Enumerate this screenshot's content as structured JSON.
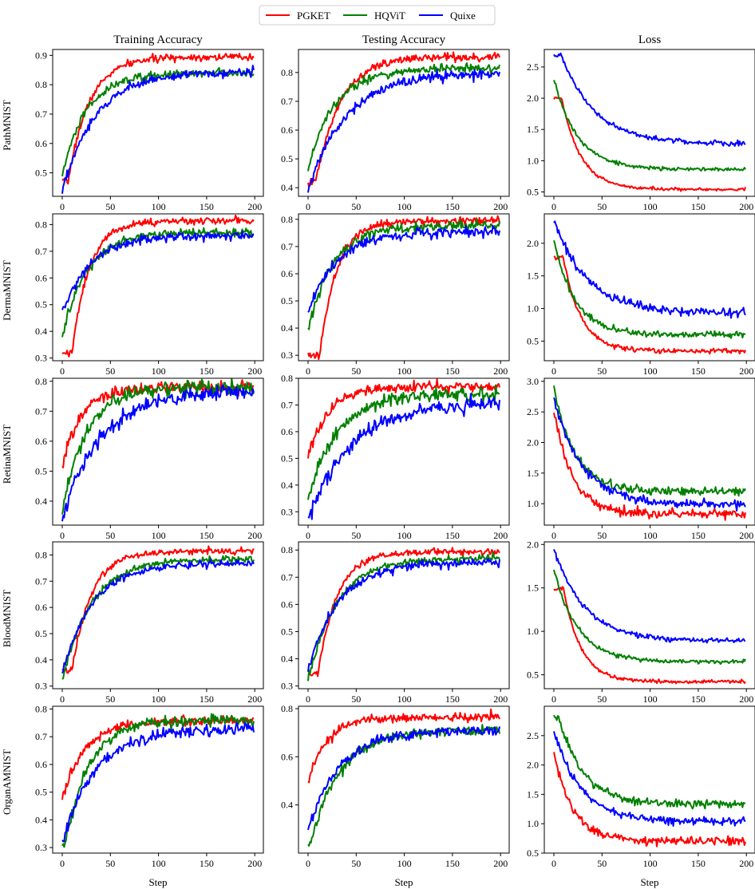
{
  "legend": {
    "entries": [
      {
        "name": "PGKET",
        "color": "#ff0000"
      },
      {
        "name": "HQViT",
        "color": "#008000"
      },
      {
        "name": "Quixe",
        "color": "#0000ff"
      }
    ]
  },
  "column_titles": [
    "Training Accuracy",
    "Testing Accuracy",
    "Loss"
  ],
  "row_labels": [
    "PathMNIST",
    "DermaMNIST",
    "RetinaMNIST",
    "BloodMNIST",
    "OrganAMNIST"
  ],
  "xlabel": "Step",
  "chart_data": {
    "type": "line",
    "x_range": [
      0,
      199
    ],
    "x_ticks": [
      0,
      50,
      100,
      150,
      200
    ],
    "series_names": [
      "PGKET",
      "HQViT",
      "Quixe"
    ],
    "series_colors": [
      "#ff0000",
      "#008000",
      "#0000ff"
    ],
    "panels": [
      {
        "row": "PathMNIST",
        "column": "Training Accuracy",
        "ylim": [
          0.42,
          0.92
        ],
        "yticks": [
          0.5,
          0.6,
          0.7,
          0.8,
          0.9
        ],
        "yticklabels": [
          "0.5",
          "0.6",
          "0.7",
          "0.8",
          "0.9"
        ],
        "series": [
          {
            "name": "PGKET",
            "initial": 0.47,
            "final": 0.895,
            "rise_steps": 22,
            "noise": 0.006,
            "delay": 6
          },
          {
            "name": "HQViT",
            "initial": 0.49,
            "final": 0.84,
            "rise_steps": 25,
            "noise": 0.007,
            "delay": 0
          },
          {
            "name": "Quixe",
            "initial": 0.44,
            "final": 0.845,
            "rise_steps": 35,
            "noise": 0.007,
            "delay": 0
          }
        ]
      },
      {
        "row": "PathMNIST",
        "column": "Testing Accuracy",
        "ylim": [
          0.37,
          0.88
        ],
        "yticks": [
          0.4,
          0.5,
          0.6,
          0.7,
          0.8
        ],
        "yticklabels": [
          "0.4",
          "0.5",
          "0.6",
          "0.7",
          "0.8"
        ],
        "series": [
          {
            "name": "PGKET",
            "initial": 0.42,
            "final": 0.855,
            "rise_steps": 25,
            "noise": 0.007,
            "delay": 8
          },
          {
            "name": "HQViT",
            "initial": 0.47,
            "final": 0.815,
            "rise_steps": 28,
            "noise": 0.008,
            "delay": 0
          },
          {
            "name": "Quixe",
            "initial": 0.39,
            "final": 0.8,
            "rise_steps": 40,
            "noise": 0.009,
            "delay": 0
          }
        ]
      },
      {
        "row": "PathMNIST",
        "column": "Loss",
        "ylim": [
          0.43,
          2.78
        ],
        "yticks": [
          0.5,
          1.0,
          1.5,
          2.0,
          2.5
        ],
        "yticklabels": [
          "0.5",
          "1.0",
          "1.5",
          "2.0",
          "2.5"
        ],
        "series": [
          {
            "name": "PGKET",
            "initial": 2.0,
            "final": 0.54,
            "rise_steps": 20,
            "noise": 0.012,
            "delay": 8
          },
          {
            "name": "HQViT",
            "initial": 2.3,
            "final": 0.86,
            "rise_steps": 25,
            "noise": 0.015,
            "delay": 0
          },
          {
            "name": "Quixe",
            "initial": 2.68,
            "final": 1.27,
            "rise_steps": 35,
            "noise": 0.02,
            "delay": 8
          }
        ]
      },
      {
        "row": "DermaMNIST",
        "column": "Training Accuracy",
        "ylim": [
          0.29,
          0.84
        ],
        "yticks": [
          0.3,
          0.4,
          0.5,
          0.6,
          0.7,
          0.8
        ],
        "yticklabels": [
          "0.3",
          "0.4",
          "0.5",
          "0.6",
          "0.7",
          "0.8"
        ],
        "series": [
          {
            "name": "PGKET",
            "initial": 0.32,
            "final": 0.815,
            "rise_steps": 18,
            "noise": 0.007,
            "delay": 10
          },
          {
            "name": "HQViT",
            "initial": 0.37,
            "final": 0.77,
            "rise_steps": 25,
            "noise": 0.008,
            "delay": 0
          },
          {
            "name": "Quixe",
            "initial": 0.47,
            "final": 0.76,
            "rise_steps": 30,
            "noise": 0.008,
            "delay": 0
          }
        ]
      },
      {
        "row": "DermaMNIST",
        "column": "Testing Accuracy",
        "ylim": [
          0.28,
          0.82
        ],
        "yticks": [
          0.3,
          0.4,
          0.5,
          0.6,
          0.7,
          0.8
        ],
        "yticklabels": [
          "0.3",
          "0.4",
          "0.5",
          "0.6",
          "0.7",
          "0.8"
        ],
        "series": [
          {
            "name": "PGKET",
            "initial": 0.3,
            "final": 0.795,
            "rise_steps": 18,
            "noise": 0.008,
            "delay": 12
          },
          {
            "name": "HQViT",
            "initial": 0.39,
            "final": 0.775,
            "rise_steps": 25,
            "noise": 0.009,
            "delay": 0
          },
          {
            "name": "Quixe",
            "initial": 0.46,
            "final": 0.755,
            "rise_steps": 30,
            "noise": 0.01,
            "delay": 0
          }
        ]
      },
      {
        "row": "DermaMNIST",
        "column": "Loss",
        "ylim": [
          0.2,
          2.45
        ],
        "yticks": [
          0.5,
          1.0,
          1.5,
          2.0
        ],
        "yticklabels": [
          "0.5",
          "1.0",
          "1.5",
          "2.0"
        ],
        "series": [
          {
            "name": "PGKET",
            "initial": 1.78,
            "final": 0.35,
            "rise_steps": 18,
            "noise": 0.02,
            "delay": 10
          },
          {
            "name": "HQViT",
            "initial": 2.05,
            "final": 0.6,
            "rise_steps": 22,
            "noise": 0.025,
            "delay": 0
          },
          {
            "name": "Quixe",
            "initial": 2.35,
            "final": 0.93,
            "rise_steps": 35,
            "noise": 0.03,
            "delay": 0
          }
        ]
      },
      {
        "row": "RetinaMNIST",
        "column": "Training Accuracy",
        "ylim": [
          0.32,
          0.81
        ],
        "yticks": [
          0.4,
          0.5,
          0.6,
          0.7,
          0.8
        ],
        "yticklabels": [
          "0.4",
          "0.5",
          "0.6",
          "0.7",
          "0.8"
        ],
        "series": [
          {
            "name": "PGKET",
            "initial": 0.52,
            "final": 0.78,
            "rise_steps": 20,
            "noise": 0.01,
            "delay": 0
          },
          {
            "name": "HQViT",
            "initial": 0.37,
            "final": 0.78,
            "rise_steps": 25,
            "noise": 0.012,
            "delay": 0
          },
          {
            "name": "Quixe",
            "initial": 0.34,
            "final": 0.77,
            "rise_steps": 40,
            "noise": 0.013,
            "delay": 0
          }
        ]
      },
      {
        "row": "RetinaMNIST",
        "column": "Testing Accuracy",
        "ylim": [
          0.25,
          0.8
        ],
        "yticks": [
          0.3,
          0.4,
          0.5,
          0.6,
          0.7,
          0.8
        ],
        "yticklabels": [
          "0.3",
          "0.4",
          "0.5",
          "0.6",
          "0.7",
          "0.8"
        ],
        "series": [
          {
            "name": "PGKET",
            "initial": 0.51,
            "final": 0.77,
            "rise_steps": 22,
            "noise": 0.009,
            "delay": 0
          },
          {
            "name": "HQViT",
            "initial": 0.35,
            "final": 0.74,
            "rise_steps": 30,
            "noise": 0.012,
            "delay": 0
          },
          {
            "name": "Quixe",
            "initial": 0.27,
            "final": 0.71,
            "rise_steps": 45,
            "noise": 0.014,
            "delay": 0
          }
        ]
      },
      {
        "row": "RetinaMNIST",
        "column": "Loss",
        "ylim": [
          0.65,
          3.05
        ],
        "yticks": [
          1.0,
          1.5,
          2.0,
          2.5,
          3.0
        ],
        "yticklabels": [
          "1.0",
          "1.5",
          "2.0",
          "2.5",
          "3.0"
        ],
        "series": [
          {
            "name": "PGKET",
            "initial": 2.5,
            "final": 0.83,
            "rise_steps": 20,
            "noise": 0.04,
            "delay": 0
          },
          {
            "name": "HQViT",
            "initial": 2.9,
            "final": 1.2,
            "rise_steps": 22,
            "noise": 0.035,
            "delay": 0
          },
          {
            "name": "Quixe",
            "initial": 2.7,
            "final": 0.98,
            "rise_steps": 30,
            "noise": 0.035,
            "delay": 0
          }
        ]
      },
      {
        "row": "BloodMNIST",
        "column": "Training Accuracy",
        "ylim": [
          0.29,
          0.85
        ],
        "yticks": [
          0.3,
          0.4,
          0.5,
          0.6,
          0.7,
          0.8
        ],
        "yticklabels": [
          "0.3",
          "0.4",
          "0.5",
          "0.6",
          "0.7",
          "0.8"
        ],
        "series": [
          {
            "name": "PGKET",
            "initial": 0.36,
            "final": 0.815,
            "rise_steps": 20,
            "noise": 0.006,
            "delay": 10
          },
          {
            "name": "HQViT",
            "initial": 0.32,
            "final": 0.785,
            "rise_steps": 30,
            "noise": 0.007,
            "delay": 0
          },
          {
            "name": "Quixe",
            "initial": 0.35,
            "final": 0.77,
            "rise_steps": 32,
            "noise": 0.007,
            "delay": 0
          }
        ]
      },
      {
        "row": "BloodMNIST",
        "column": "Testing Accuracy",
        "ylim": [
          0.29,
          0.83
        ],
        "yticks": [
          0.3,
          0.4,
          0.5,
          0.6,
          0.7,
          0.8
        ],
        "yticklabels": [
          "0.3",
          "0.4",
          "0.5",
          "0.6",
          "0.7",
          "0.8"
        ],
        "series": [
          {
            "name": "PGKET",
            "initial": 0.34,
            "final": 0.795,
            "rise_steps": 20,
            "noise": 0.006,
            "delay": 10
          },
          {
            "name": "HQViT",
            "initial": 0.32,
            "final": 0.77,
            "rise_steps": 30,
            "noise": 0.007,
            "delay": 0
          },
          {
            "name": "Quixe",
            "initial": 0.36,
            "final": 0.755,
            "rise_steps": 32,
            "noise": 0.008,
            "delay": 0
          }
        ]
      },
      {
        "row": "BloodMNIST",
        "column": "Loss",
        "ylim": [
          0.34,
          2.03
        ],
        "yticks": [
          0.5,
          1.0,
          1.5,
          2.0
        ],
        "yticklabels": [
          "0.5",
          "1.0",
          "1.5",
          "2.0"
        ],
        "series": [
          {
            "name": "PGKET",
            "initial": 1.49,
            "final": 0.42,
            "rise_steps": 18,
            "noise": 0.01,
            "delay": 10
          },
          {
            "name": "HQViT",
            "initial": 1.72,
            "final": 0.65,
            "rise_steps": 25,
            "noise": 0.012,
            "delay": 0
          },
          {
            "name": "Quixe",
            "initial": 1.95,
            "final": 0.89,
            "rise_steps": 32,
            "noise": 0.015,
            "delay": 0
          }
        ]
      },
      {
        "row": "OrganAMNIST",
        "column": "Training Accuracy",
        "ylim": [
          0.28,
          0.81
        ],
        "yticks": [
          0.3,
          0.4,
          0.5,
          0.6,
          0.7,
          0.8
        ],
        "yticklabels": [
          "0.3",
          "0.4",
          "0.5",
          "0.6",
          "0.7",
          "0.8"
        ],
        "series": [
          {
            "name": "PGKET",
            "initial": 0.48,
            "final": 0.76,
            "rise_steps": 25,
            "noise": 0.009,
            "delay": 0
          },
          {
            "name": "HQViT",
            "initial": 0.31,
            "final": 0.76,
            "rise_steps": 25,
            "noise": 0.01,
            "delay": 3
          },
          {
            "name": "Quixe",
            "initial": 0.32,
            "final": 0.73,
            "rise_steps": 35,
            "noise": 0.011,
            "delay": 0
          }
        ]
      },
      {
        "row": "OrganAMNIST",
        "column": "Testing Accuracy",
        "ylim": [
          0.2,
          0.81
        ],
        "yticks": [
          0.4,
          0.6,
          0.8
        ],
        "yticklabels": [
          "0.4",
          "0.6",
          "0.8"
        ],
        "series": [
          {
            "name": "PGKET",
            "initial": 0.5,
            "final": 0.765,
            "rise_steps": 20,
            "noise": 0.009,
            "delay": 0
          },
          {
            "name": "HQViT",
            "initial": 0.23,
            "final": 0.71,
            "rise_steps": 30,
            "noise": 0.01,
            "delay": 2
          },
          {
            "name": "Quixe",
            "initial": 0.29,
            "final": 0.71,
            "rise_steps": 32,
            "noise": 0.01,
            "delay": 0
          }
        ]
      },
      {
        "row": "OrganAMNIST",
        "column": "Loss",
        "ylim": [
          0.5,
          3.0
        ],
        "yticks": [
          0.5,
          1.0,
          1.5,
          2.0,
          2.5
        ],
        "yticklabels": [
          "0.5",
          "1.0",
          "1.5",
          "2.0",
          "2.5"
        ],
        "series": [
          {
            "name": "PGKET",
            "initial": 2.2,
            "final": 0.7,
            "rise_steps": 20,
            "noise": 0.035,
            "delay": 0
          },
          {
            "name": "HQViT",
            "initial": 2.83,
            "final": 1.33,
            "rise_steps": 25,
            "noise": 0.035,
            "delay": 5
          },
          {
            "name": "Quixe",
            "initial": 2.58,
            "final": 1.04,
            "rise_steps": 28,
            "noise": 0.035,
            "delay": 0
          }
        ]
      }
    ]
  }
}
